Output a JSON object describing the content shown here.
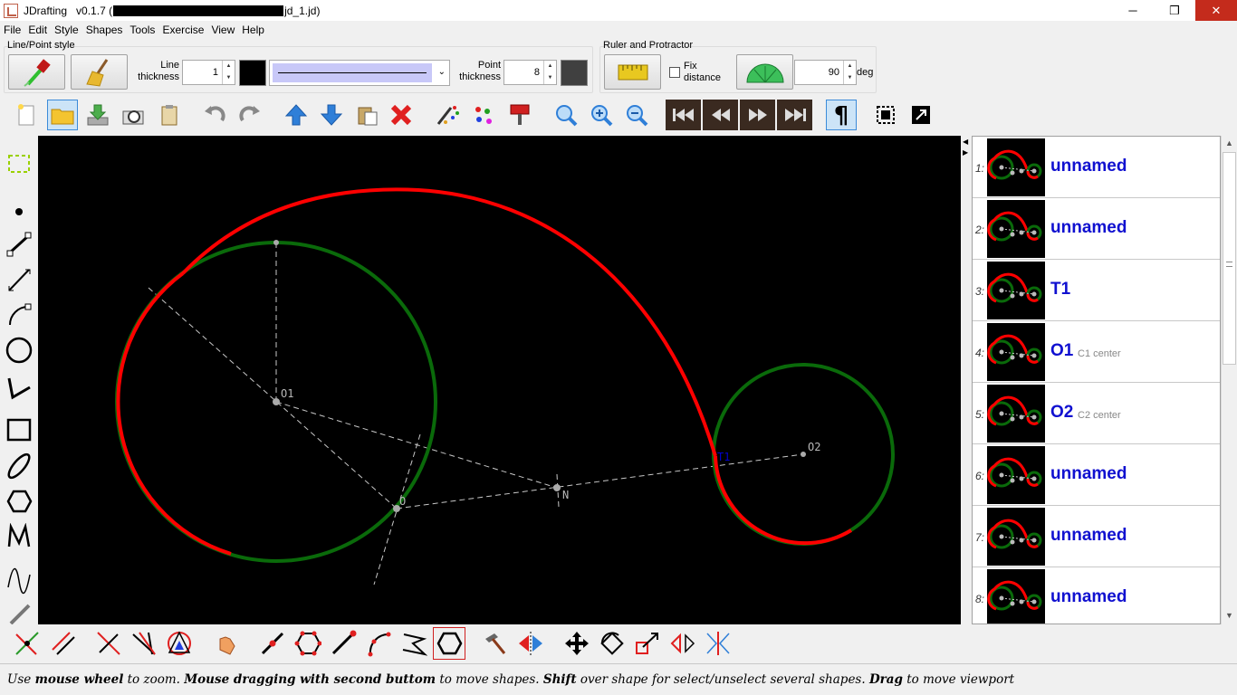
{
  "window": {
    "app_name": "JDrafting",
    "version": "v0.1.7 (",
    "file_suffix": "jd_1.jd)",
    "min_glyph": "─",
    "max_glyph": "❐",
    "close_glyph": "✕"
  },
  "menu": [
    "File",
    "Edit",
    "Style",
    "Shapes",
    "Tools",
    "Exercise",
    "View",
    "Help"
  ],
  "line_point_style": {
    "group_title": "Line/Point style",
    "line_thickness_label_1": "Line",
    "line_thickness_label_2": "thickness",
    "line_thickness_value": "1",
    "line_color": "#000000",
    "point_thickness_label_1": "Point",
    "point_thickness_label_2": "thickness",
    "point_thickness_value": "8",
    "point_color": "#404040"
  },
  "ruler_protractor": {
    "group_title": "Ruler and Protractor",
    "fix_distance_label_1": "Fix",
    "fix_distance_label_2": "distance",
    "angle_value": "90",
    "angle_unit": "deg"
  },
  "canvas": {
    "labels": {
      "o1": "O1",
      "o2": "O2",
      "t1": "T1",
      "n": "N",
      "o": "O"
    },
    "colors": {
      "red": "#ff0000",
      "green": "#006400",
      "aux": "#c8c8c8",
      "t1": "#0000cc"
    }
  },
  "shape_list": [
    {
      "num": "1:",
      "name": "unnamed",
      "sub": ""
    },
    {
      "num": "2:",
      "name": "unnamed",
      "sub": ""
    },
    {
      "num": "3:",
      "name": "T1",
      "sub": ""
    },
    {
      "num": "4:",
      "name": "O1",
      "sub": "C1 center"
    },
    {
      "num": "5:",
      "name": "O2",
      "sub": "C2 center"
    },
    {
      "num": "6:",
      "name": "unnamed",
      "sub": ""
    },
    {
      "num": "7:",
      "name": "unnamed",
      "sub": ""
    },
    {
      "num": "8:",
      "name": "unnamed",
      "sub": ""
    }
  ],
  "status": {
    "p1": "Use ",
    "b1": "mouse wheel",
    "p2": " to zoom. ",
    "b2": "Mouse dragging with second buttom",
    "p3": " to move shapes. ",
    "b3": "Shift",
    "p4": " over shape for select/unselect several shapes. ",
    "b4": "Drag",
    "p5": " to move viewport"
  }
}
